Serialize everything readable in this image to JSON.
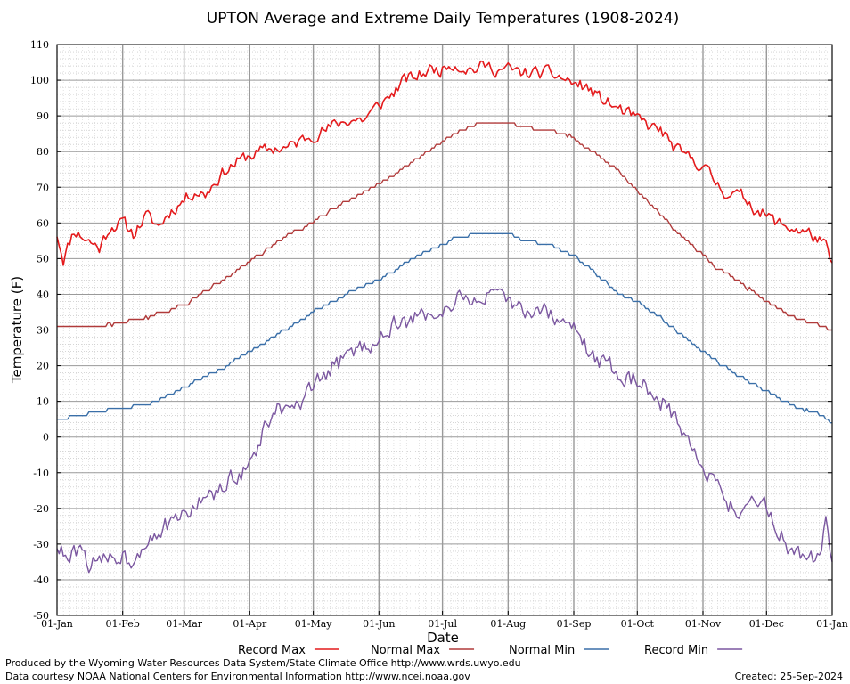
{
  "chart_data": {
    "type": "line",
    "title": "UPTON Average and Extreme Daily Temperatures (1908-2024)",
    "xlabel": "Date",
    "ylabel": "Temperature (F)",
    "ylim": [
      -50,
      110
    ],
    "yticks": [
      -50,
      -40,
      -30,
      -20,
      -10,
      0,
      10,
      20,
      30,
      40,
      50,
      60,
      70,
      80,
      90,
      100,
      110
    ],
    "x_tick_labels": [
      "01-Jan",
      "01-Feb",
      "01-Mar",
      "01-Apr",
      "01-May",
      "01-Jun",
      "01-Jul",
      "01-Aug",
      "01-Sep",
      "01-Oct",
      "01-Nov",
      "01-Dec",
      "01-Jan"
    ],
    "x_tick_days": [
      0,
      31,
      60,
      91,
      121,
      152,
      182,
      213,
      244,
      274,
      305,
      335,
      366
    ],
    "x_range_days": [
      0,
      366
    ],
    "grid": true,
    "legend_position": "bottom",
    "series": [
      {
        "name": "Record Max",
        "color": "#e41a1c",
        "anchors": [
          [
            0,
            57
          ],
          [
            3,
            50
          ],
          [
            8,
            58
          ],
          [
            15,
            55
          ],
          [
            20,
            53
          ],
          [
            25,
            59
          ],
          [
            31,
            60
          ],
          [
            36,
            57
          ],
          [
            42,
            62
          ],
          [
            48,
            59
          ],
          [
            53,
            63
          ],
          [
            59,
            66
          ],
          [
            65,
            69
          ],
          [
            70,
            68
          ],
          [
            75,
            72
          ],
          [
            80,
            75
          ],
          [
            85,
            77
          ],
          [
            91,
            79
          ],
          [
            97,
            80
          ],
          [
            103,
            81
          ],
          [
            109,
            81
          ],
          [
            115,
            83
          ],
          [
            121,
            85
          ],
          [
            127,
            86
          ],
          [
            133,
            88
          ],
          [
            139,
            89
          ],
          [
            145,
            89
          ],
          [
            152,
            93
          ],
          [
            158,
            96
          ],
          [
            164,
            100
          ],
          [
            170,
            101
          ],
          [
            176,
            103
          ],
          [
            182,
            103
          ],
          [
            186,
            105
          ],
          [
            190,
            104
          ],
          [
            196,
            103
          ],
          [
            202,
            104
          ],
          [
            208,
            103
          ],
          [
            213,
            103
          ],
          [
            219,
            102
          ],
          [
            225,
            102
          ],
          [
            231,
            102
          ],
          [
            237,
            101
          ],
          [
            244,
            99
          ],
          [
            250,
            98
          ],
          [
            256,
            95
          ],
          [
            262,
            93
          ],
          [
            268,
            91
          ],
          [
            274,
            89
          ],
          [
            280,
            87
          ],
          [
            285,
            86
          ],
          [
            290,
            82
          ],
          [
            295,
            79
          ],
          [
            300,
            78
          ],
          [
            305,
            76
          ],
          [
            310,
            72
          ],
          [
            315,
            69
          ],
          [
            320,
            68
          ],
          [
            325,
            67
          ],
          [
            330,
            64
          ],
          [
            335,
            62
          ],
          [
            340,
            60
          ],
          [
            345,
            59
          ],
          [
            350,
            58
          ],
          [
            355,
            57
          ],
          [
            360,
            55
          ],
          [
            363,
            53
          ],
          [
            366,
            48
          ]
        ],
        "noise": 3.0,
        "lw": 1.6,
        "seed": 11
      },
      {
        "name": "Normal Max",
        "color": "#b03a3a",
        "anchors": [
          [
            0,
            31
          ],
          [
            10,
            31
          ],
          [
            20,
            31
          ],
          [
            31,
            32
          ],
          [
            40,
            33
          ],
          [
            50,
            35
          ],
          [
            60,
            37
          ],
          [
            70,
            41
          ],
          [
            80,
            45
          ],
          [
            91,
            49
          ],
          [
            100,
            53
          ],
          [
            110,
            57
          ],
          [
            121,
            60
          ],
          [
            130,
            64
          ],
          [
            140,
            67
          ],
          [
            152,
            71
          ],
          [
            160,
            74
          ],
          [
            170,
            78
          ],
          [
            182,
            83
          ],
          [
            190,
            86
          ],
          [
            200,
            88
          ],
          [
            213,
            88
          ],
          [
            222,
            87
          ],
          [
            232,
            86
          ],
          [
            244,
            84
          ],
          [
            250,
            81
          ],
          [
            258,
            78
          ],
          [
            266,
            74
          ],
          [
            274,
            69
          ],
          [
            282,
            64
          ],
          [
            290,
            59
          ],
          [
            298,
            55
          ],
          [
            305,
            51
          ],
          [
            312,
            47
          ],
          [
            320,
            44
          ],
          [
            328,
            41
          ],
          [
            335,
            38
          ],
          [
            343,
            35
          ],
          [
            350,
            33
          ],
          [
            358,
            32
          ],
          [
            366,
            30
          ]
        ],
        "noise": 0.6,
        "lw": 1.4,
        "seed": 22
      },
      {
        "name": "Normal Min",
        "color": "#3a6fa8",
        "anchors": [
          [
            0,
            5
          ],
          [
            10,
            6
          ],
          [
            20,
            7
          ],
          [
            31,
            8
          ],
          [
            40,
            9
          ],
          [
            50,
            11
          ],
          [
            60,
            14
          ],
          [
            70,
            17
          ],
          [
            80,
            20
          ],
          [
            91,
            24
          ],
          [
            100,
            27
          ],
          [
            110,
            31
          ],
          [
            121,
            35
          ],
          [
            130,
            38
          ],
          [
            140,
            41
          ],
          [
            152,
            44
          ],
          [
            160,
            47
          ],
          [
            170,
            51
          ],
          [
            182,
            54
          ],
          [
            190,
            56
          ],
          [
            200,
            57
          ],
          [
            213,
            57
          ],
          [
            222,
            55
          ],
          [
            232,
            54
          ],
          [
            244,
            51
          ],
          [
            250,
            48
          ],
          [
            258,
            44
          ],
          [
            266,
            40
          ],
          [
            274,
            38
          ],
          [
            282,
            35
          ],
          [
            290,
            31
          ],
          [
            298,
            27
          ],
          [
            305,
            24
          ],
          [
            312,
            21
          ],
          [
            320,
            18
          ],
          [
            328,
            15
          ],
          [
            335,
            13
          ],
          [
            343,
            10
          ],
          [
            350,
            8
          ],
          [
            358,
            7
          ],
          [
            366,
            4
          ]
        ],
        "noise": 0.5,
        "lw": 1.4,
        "seed": 33
      },
      {
        "name": "Record Min",
        "color": "#7b57a0",
        "anchors": [
          [
            0,
            -30
          ],
          [
            5,
            -35
          ],
          [
            10,
            -32
          ],
          [
            15,
            -35
          ],
          [
            20,
            -36
          ],
          [
            25,
            -33
          ],
          [
            31,
            -33
          ],
          [
            35,
            -35
          ],
          [
            40,
            -30
          ],
          [
            45,
            -27
          ],
          [
            50,
            -25
          ],
          [
            55,
            -25
          ],
          [
            60,
            -22
          ],
          [
            65,
            -19
          ],
          [
            70,
            -17
          ],
          [
            75,
            -16
          ],
          [
            80,
            -14
          ],
          [
            85,
            -10
          ],
          [
            91,
            -8
          ],
          [
            95,
            -3
          ],
          [
            100,
            5
          ],
          [
            105,
            8
          ],
          [
            110,
            6
          ],
          [
            115,
            9
          ],
          [
            121,
            13
          ],
          [
            126,
            17
          ],
          [
            131,
            20
          ],
          [
            136,
            22
          ],
          [
            141,
            24
          ],
          [
            146,
            26
          ],
          [
            152,
            28
          ],
          [
            158,
            31
          ],
          [
            164,
            32
          ],
          [
            170,
            33
          ],
          [
            176,
            35
          ],
          [
            182,
            36
          ],
          [
            188,
            38
          ],
          [
            194,
            39
          ],
          [
            200,
            39
          ],
          [
            206,
            39
          ],
          [
            213,
            37
          ],
          [
            219,
            36
          ],
          [
            225,
            36
          ],
          [
            231,
            35
          ],
          [
            237,
            33
          ],
          [
            244,
            30
          ],
          [
            250,
            25
          ],
          [
            255,
            22
          ],
          [
            260,
            20
          ],
          [
            265,
            18
          ],
          [
            270,
            17
          ],
          [
            274,
            16
          ],
          [
            279,
            14
          ],
          [
            284,
            11
          ],
          [
            289,
            8
          ],
          [
            294,
            3
          ],
          [
            298,
            -2
          ],
          [
            302,
            -5
          ],
          [
            305,
            -7
          ],
          [
            310,
            -12
          ],
          [
            315,
            -17
          ],
          [
            320,
            -21
          ],
          [
            325,
            -18
          ],
          [
            330,
            -17
          ],
          [
            335,
            -20
          ],
          [
            340,
            -26
          ],
          [
            345,
            -30
          ],
          [
            350,
            -32
          ],
          [
            355,
            -35
          ],
          [
            360,
            -33
          ],
          [
            363,
            -25
          ],
          [
            366,
            -35
          ]
        ],
        "noise": 4.5,
        "lw": 1.4,
        "seed": 44
      }
    ]
  },
  "footer": {
    "credit_line1": "Produced by the Wyoming Water Resources Data System/State Climate Office http://www.wrds.uwyo.edu",
    "credit_line2": "Data courtesy NOAA National Centers for Environmental Information http://www.ncei.noaa.gov",
    "created": "Created:  25-Sep-2024"
  }
}
